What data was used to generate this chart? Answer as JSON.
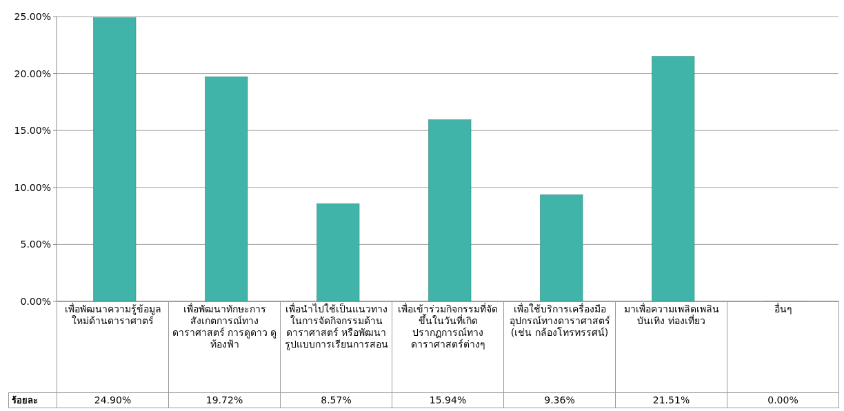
{
  "chart_data": {
    "type": "bar",
    "categories": [
      "เพื่อพัฒนาความรู้ข้อมูลใหม่ด้านดาราศาตร์",
      "เพื่อพัฒนาทักษะการสังเกตการณ์ทางดาราศาสตร์ การดูดาว ดูท้องฟ้า",
      "เพื่อนำไปใช้เป็นแนวทางในการจัดกิจกรรมด้านดาราศาสตร์ หรือพัฒนารูปแบบการเรียนการสอน",
      "เพื่อเข้าร่วมกิจกรรมที่จัดขึ้นในวันที่เกิดปรากฏการณ์ทางดาราศาสตร์ต่างๆ",
      "เพื่อใช้บริการเครื่องมือ อุปกรณ์ทางดาราศาสตร์ (เช่น กล้องโทรทรรศน์)",
      "มาเพื่อความเพลิดเพลิน บันเทิง ท่องเที่ยว",
      "อื่นๆ"
    ],
    "series": [
      {
        "name": "ร้อยละ",
        "color": "#40b4a8",
        "values": [
          24.9,
          19.72,
          8.57,
          15.94,
          9.36,
          21.51,
          0.0
        ],
        "value_labels": [
          "24.90%",
          "19.72%",
          "8.57%",
          "15.94%",
          "9.36%",
          "21.51%",
          "0.00%"
        ]
      }
    ],
    "ylim": [
      0,
      25
    ],
    "yticks": [
      {
        "value": 0,
        "label": "0.00%"
      },
      {
        "value": 5,
        "label": "5.00%"
      },
      {
        "value": 10,
        "label": "10.00%"
      },
      {
        "value": 15,
        "label": "15.00%"
      },
      {
        "value": 20,
        "label": "20.00%"
      },
      {
        "value": 25,
        "label": "25.00%"
      }
    ],
    "grid": "y"
  }
}
